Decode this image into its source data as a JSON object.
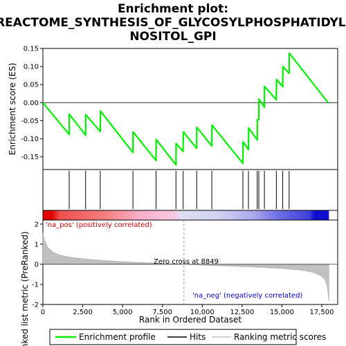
{
  "chart_data": {
    "type": "line",
    "title_lines": [
      "Enrichment plot:",
      "REACTOME_SYNTHESIS_OF_GLYCOSYLPHOSPHATIDYLI",
      "NOSITOL_GPI"
    ],
    "xlabel": "Rank in Ordered Dataset",
    "ylabel_top": "Enrichment score (ES)",
    "ylabel_bottom": "Ranked list metric (PreRanked)",
    "xlim": [
      0,
      18500
    ],
    "x_ticks": [
      0,
      2500,
      5000,
      7500,
      10000,
      12500,
      15000,
      17500
    ],
    "x_tick_labels": [
      "0",
      "2,500",
      "5,000",
      "7,500",
      "10,000",
      "12,500",
      "15,000",
      "17,500"
    ],
    "es_ylim": [
      -0.185,
      0.15
    ],
    "es_ticks": [
      -0.15,
      -0.1,
      -0.05,
      0.0,
      0.05,
      0.1,
      0.15
    ],
    "es_tick_labels": [
      "-0.15",
      "-0.10",
      "-0.05",
      "0.00",
      "0.05",
      "0.10",
      "0.15"
    ],
    "metric_ylim": [
      -2,
      2.2
    ],
    "metric_ticks": [
      -2,
      -1,
      0,
      1,
      2
    ],
    "metric_tick_labels": [
      "-2",
      "-1",
      "0",
      "1",
      "2"
    ],
    "series": [
      {
        "name": "Enrichment profile",
        "color": "#00ee00",
        "x": [
          0,
          1650,
          1660,
          2680,
          2690,
          3600,
          3610,
          5650,
          5660,
          7100,
          7110,
          8350,
          8360,
          8800,
          8810,
          9650,
          9660,
          10600,
          10610,
          12550,
          12560,
          12900,
          12910,
          13450,
          13460,
          13550,
          13560,
          13900,
          13910,
          14650,
          14660,
          15050,
          15060,
          15450,
          15460,
          17900
        ],
        "y": [
          0.0,
          -0.088,
          -0.032,
          -0.09,
          -0.033,
          -0.08,
          -0.023,
          -0.138,
          -0.081,
          -0.16,
          -0.102,
          -0.172,
          -0.113,
          -0.135,
          -0.081,
          -0.126,
          -0.068,
          -0.12,
          -0.062,
          -0.168,
          -0.108,
          -0.13,
          -0.07,
          -0.103,
          -0.047,
          -0.047,
          0.01,
          -0.013,
          0.045,
          0.008,
          0.064,
          0.044,
          0.1,
          0.081,
          0.137,
          0.0
        ]
      },
      {
        "name": "Hits",
        "color": "#000000",
        "x": [
          1650,
          2680,
          3600,
          5650,
          7100,
          8350,
          8800,
          9650,
          10600,
          12550,
          12900,
          13450,
          13550,
          13900,
          14650,
          15050,
          15450
        ]
      },
      {
        "name": "Ranking metric scores",
        "color": "#c0c0c0",
        "x": [
          0,
          100,
          300,
          600,
          1000,
          1500,
          2000,
          3000,
          4000,
          5000,
          6000,
          7000,
          8000,
          8849,
          10000,
          11000,
          12000,
          13000,
          14000,
          15000,
          16000,
          16500,
          17000,
          17400,
          17700,
          17850,
          17950
        ],
        "y": [
          1.55,
          1.2,
          0.85,
          0.62,
          0.48,
          0.38,
          0.32,
          0.24,
          0.18,
          0.13,
          0.09,
          0.06,
          0.03,
          0.0,
          -0.04,
          -0.07,
          -0.1,
          -0.13,
          -0.17,
          -0.21,
          -0.28,
          -0.33,
          -0.42,
          -0.55,
          -0.75,
          -1.1,
          -1.85
        ]
      }
    ],
    "zero_cross_label": "Zero cross at 8849",
    "zero_cross_x": 8849,
    "pos_label": "'na_pos' (positively correlated)",
    "neg_label": "'na_neg' (negatively correlated)",
    "legend_position": "bottom",
    "colors": {
      "profile": "#00ee00",
      "pos_text": "#cc0000",
      "neg_text": "#0000cc",
      "bar_red": "#e00000",
      "bar_blue": "#1010d0"
    }
  }
}
